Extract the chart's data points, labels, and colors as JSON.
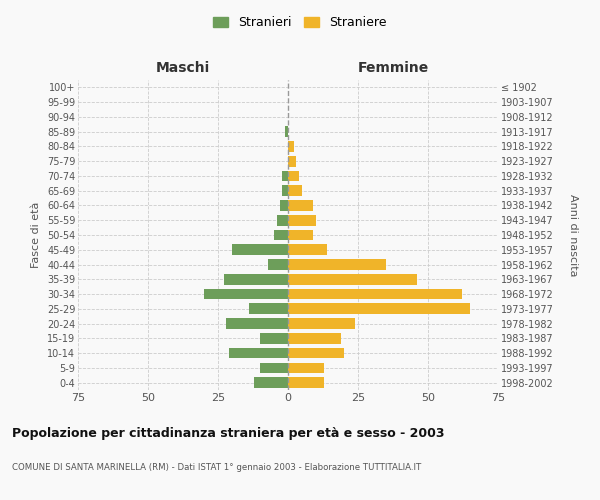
{
  "age_groups": [
    "0-4",
    "5-9",
    "10-14",
    "15-19",
    "20-24",
    "25-29",
    "30-34",
    "35-39",
    "40-44",
    "45-49",
    "50-54",
    "55-59",
    "60-64",
    "65-69",
    "70-74",
    "75-79",
    "80-84",
    "85-89",
    "90-94",
    "95-99",
    "100+"
  ],
  "birth_years": [
    "1998-2002",
    "1993-1997",
    "1988-1992",
    "1983-1987",
    "1978-1982",
    "1973-1977",
    "1968-1972",
    "1963-1967",
    "1958-1962",
    "1953-1957",
    "1948-1952",
    "1943-1947",
    "1938-1942",
    "1933-1937",
    "1928-1932",
    "1923-1927",
    "1918-1922",
    "1913-1917",
    "1908-1912",
    "1903-1907",
    "≤ 1902"
  ],
  "maschi": [
    12,
    10,
    21,
    10,
    22,
    14,
    30,
    23,
    7,
    20,
    5,
    4,
    3,
    2,
    2,
    0,
    0,
    1,
    0,
    0,
    0
  ],
  "femmine": [
    13,
    13,
    20,
    19,
    24,
    65,
    62,
    46,
    35,
    14,
    9,
    10,
    9,
    5,
    4,
    3,
    2,
    0,
    0,
    0,
    0
  ],
  "male_color": "#6d9e5a",
  "female_color": "#f0b429",
  "background_color": "#f9f9f9",
  "grid_color": "#cccccc",
  "title": "Popolazione per cittadinanza straniera per età e sesso - 2003",
  "subtitle": "COMUNE DI SANTA MARINELLA (RM) - Dati ISTAT 1° gennaio 2003 - Elaborazione TUTTITALIA.IT",
  "xlabel_left": "Maschi",
  "xlabel_right": "Femmine",
  "ylabel_left": "Fasce di età",
  "ylabel_right": "Anni di nascita",
  "legend_male": "Stranieri",
  "legend_female": "Straniere",
  "xlim": 75
}
